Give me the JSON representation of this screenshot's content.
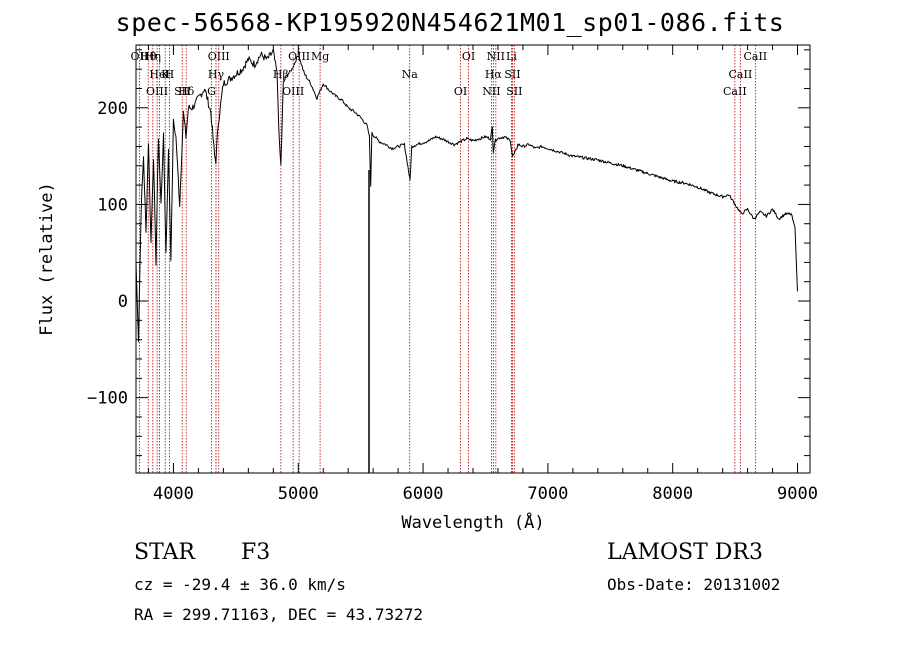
{
  "header": {
    "title": "spec-56568-KP195920N454621M01_sp01-086.fits"
  },
  "info": {
    "class": "STAR",
    "subclass": "F3",
    "survey": "LAMOST DR3",
    "cz": "cz = -29.4 ± 36.0 km/s",
    "obs_date": "Obs-Date: 20131002",
    "coords": "RA = 299.71163, DEC =  43.73272"
  },
  "chart_data": {
    "type": "line",
    "title": "spec-56568-KP195920N454621M01_sp01-086.fits",
    "xlabel": "Wavelength (Å)",
    "ylabel": "Flux (relative)",
    "xlim": [
      3700,
      9100
    ],
    "ylim": [
      -178,
      265
    ],
    "xticks": [
      4000,
      5000,
      6000,
      7000,
      8000,
      9000
    ],
    "yticks": [
      -100,
      0,
      100,
      200
    ],
    "series": [
      {
        "name": "flux",
        "x": [
          3700,
          3720,
          3740,
          3760,
          3780,
          3800,
          3820,
          3840,
          3860,
          3880,
          3900,
          3920,
          3940,
          3960,
          3980,
          4000,
          4020,
          4050,
          4080,
          4100,
          4120,
          4150,
          4180,
          4200,
          4250,
          4300,
          4330,
          4340,
          4360,
          4400,
          4450,
          4500,
          4550,
          4600,
          4650,
          4700,
          4750,
          4800,
          4830,
          4850,
          4861,
          4880,
          4900,
          4950,
          5000,
          5050,
          5100,
          5150,
          5200,
          5250,
          5300,
          5350,
          5400,
          5450,
          5500,
          5550,
          5570,
          5580,
          5590,
          5600,
          5650,
          5700,
          5750,
          5800,
          5850,
          5890,
          5895,
          5910,
          5950,
          6000,
          6050,
          6100,
          6150,
          6200,
          6250,
          6300,
          6350,
          6400,
          6450,
          6500,
          6540,
          6555,
          6563,
          6575,
          6590,
          6650,
          6700,
          6716,
          6731,
          6760,
          6800,
          6850,
          6900,
          6950,
          7000,
          7050,
          7100,
          7150,
          7200,
          7300,
          7400,
          7500,
          7600,
          7700,
          7800,
          7900,
          8000,
          8100,
          8200,
          8300,
          8400,
          8450,
          8500,
          8550,
          8600,
          8650,
          8700,
          8750,
          8800,
          8850,
          8900,
          8950,
          8980,
          9000
        ],
        "values": [
          40,
          -40,
          90,
          150,
          70,
          165,
          60,
          150,
          40,
          170,
          100,
          170,
          50,
          155,
          45,
          185,
          170,
          100,
          195,
          170,
          200,
          200,
          205,
          210,
          220,
          195,
          150,
          145,
          185,
          225,
          230,
          235,
          240,
          250,
          245,
          255,
          250,
          258,
          235,
          160,
          140,
          225,
          232,
          240,
          255,
          235,
          225,
          210,
          225,
          218,
          212,
          208,
          200,
          196,
          190,
          182,
          170,
          120,
          175,
          172,
          165,
          162,
          158,
          160,
          162,
          130,
          125,
          160,
          162,
          164,
          166,
          170,
          168,
          165,
          162,
          165,
          168,
          166,
          168,
          170,
          168,
          180,
          155,
          165,
          168,
          170,
          166,
          150,
          152,
          162,
          160,
          162,
          158,
          160,
          158,
          156,
          154,
          152,
          150,
          148,
          146,
          143,
          140,
          136,
          132,
          128,
          124,
          122,
          118,
          112,
          108,
          110,
          100,
          90,
          95,
          85,
          92,
          88,
          95,
          85,
          90,
          90,
          75,
          10
        ]
      }
    ],
    "emission_lines": [
      {
        "label": "Hθ",
        "x": 3798
      },
      {
        "label": "K",
        "x": 3934
      },
      {
        "label": "Hδ",
        "x": 4102
      },
      {
        "label": "OII",
        "x": 3727
      },
      {
        "label": "HeI",
        "x": 3889
      },
      {
        "label": "SII",
        "x": 4070
      },
      {
        "label": "OIII",
        "x": 4363
      },
      {
        "label": "Hγ",
        "x": 4341
      },
      {
        "label": "OIII",
        "x": 3869
      },
      {
        "label": "Hη",
        "x": 3835
      },
      {
        "label": "H",
        "x": 3968
      },
      {
        "label": "G",
        "x": 4305
      },
      {
        "label": "OIII",
        "x": 5007
      },
      {
        "label": "Hβ",
        "x": 4861
      },
      {
        "label": "OIII",
        "x": 4959
      },
      {
        "label": "Mg",
        "x": 5175
      },
      {
        "label": "Na",
        "x": 5893
      },
      {
        "label": "OI",
        "x": 6300
      },
      {
        "label": "OI",
        "x": 6364
      },
      {
        "label": "Hα",
        "x": 6563
      },
      {
        "label": "NII",
        "x": 6548
      },
      {
        "label": "NII",
        "x": 6583
      },
      {
        "label": "SII",
        "x": 6716
      },
      {
        "label": "SII",
        "x": 6731
      },
      {
        "label": "Li",
        "x": 6708
      },
      {
        "label": "CaII",
        "x": 8542
      },
      {
        "label": "CaII",
        "x": 8498
      },
      {
        "label": "CaII",
        "x": 8662
      }
    ]
  }
}
